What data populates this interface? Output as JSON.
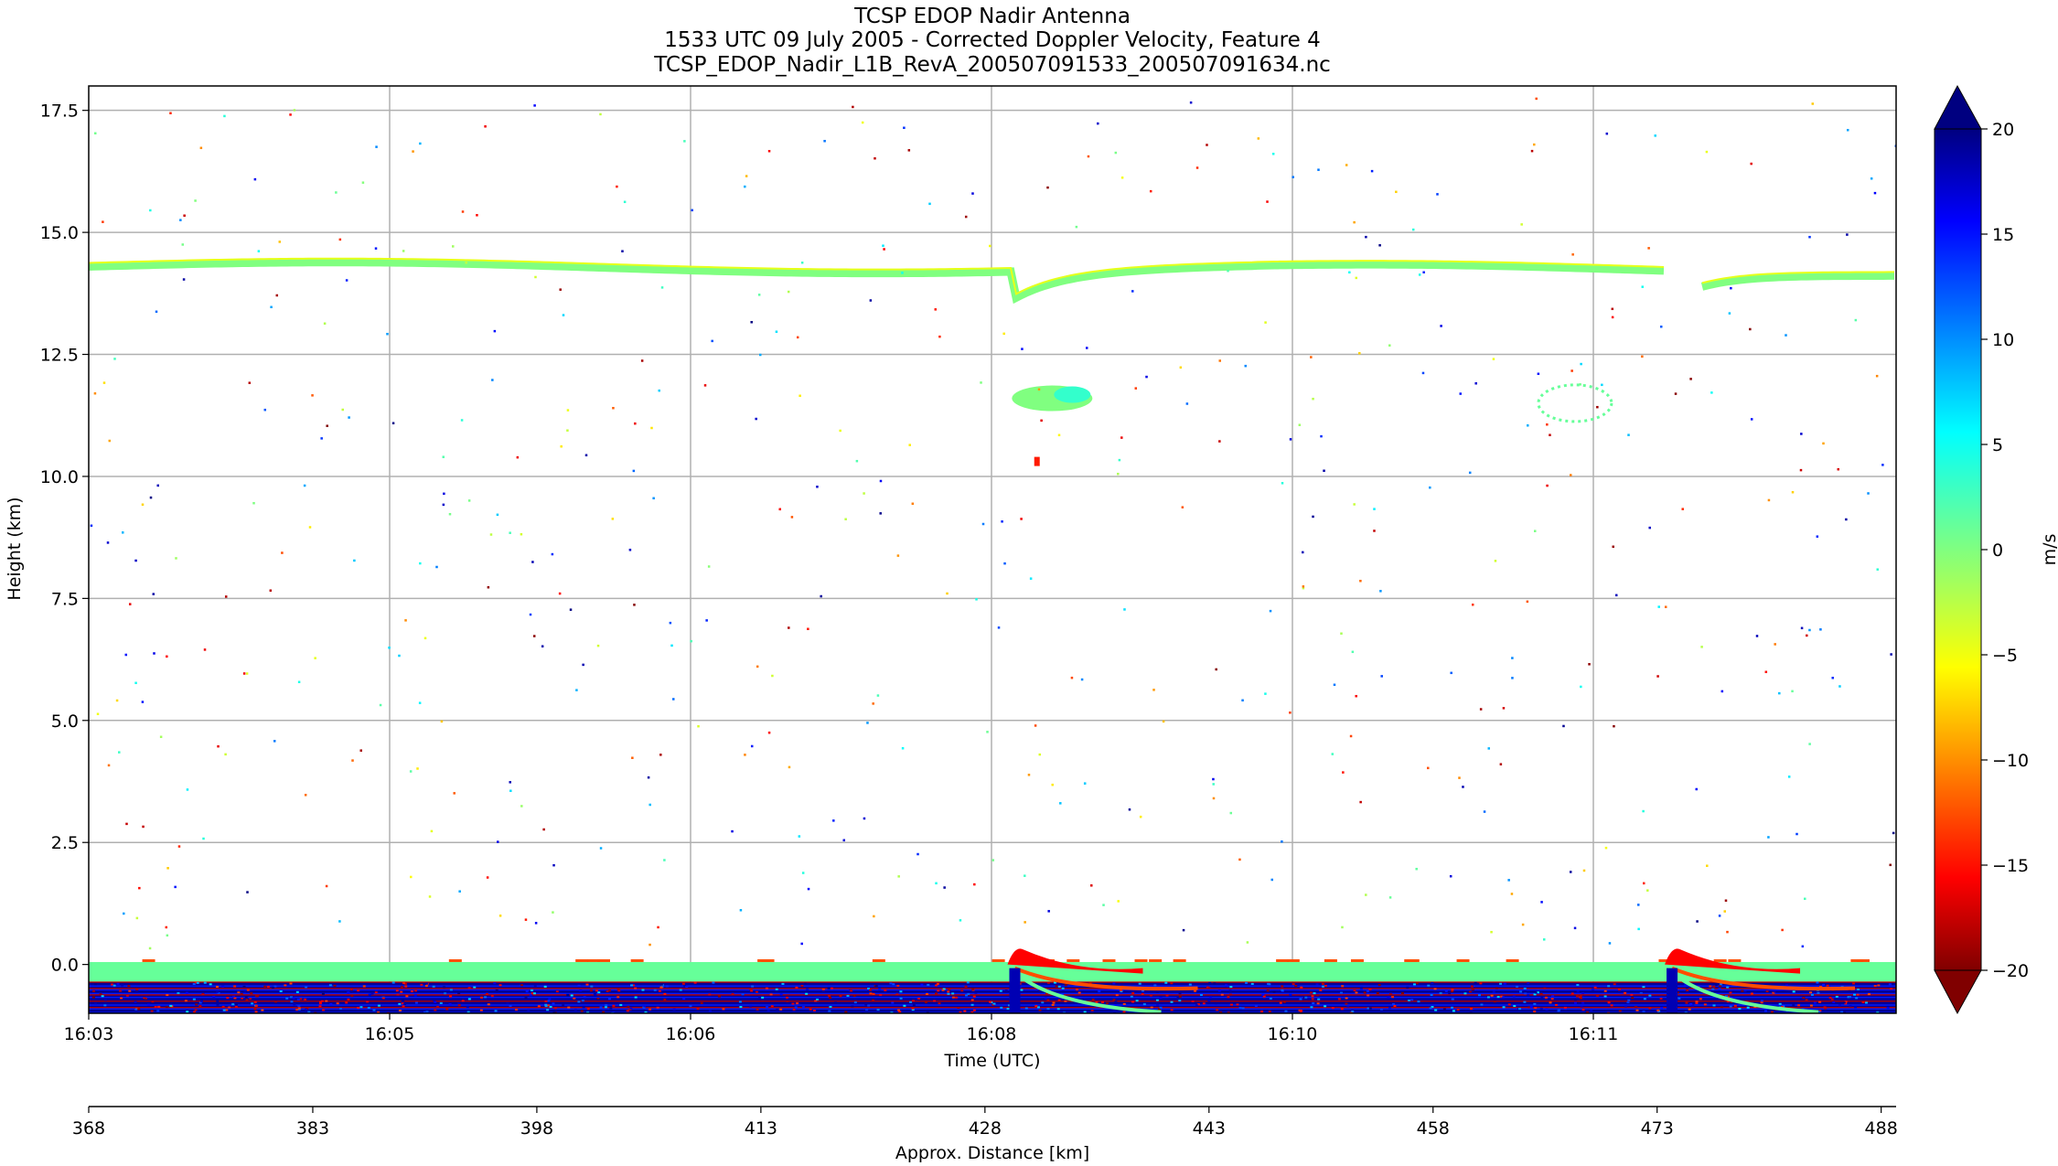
{
  "chart_data": {
    "type": "heatmap",
    "title_lines": [
      "TCSP EDOP Nadir Antenna",
      "1533 UTC 09 July 2005 - Corrected Doppler Velocity, Feature 4",
      "TCSP_EDOP_Nadir_L1B_RevA_200507091533_200507091634.nc"
    ],
    "xlabel": "Time (UTC)",
    "ylabel": "Height (km)",
    "x2label": "Approx. Distance [km]",
    "colorbar_label": "m/s",
    "x_ticks": [
      "16:03",
      "16:05",
      "16:06",
      "16:08",
      "16:10",
      "16:11"
    ],
    "y_ticks": [
      0.0,
      2.5,
      5.0,
      7.5,
      10.0,
      12.5,
      15.0,
      17.5
    ],
    "y_tick_labels": [
      "0.0",
      "2.5",
      "5.0",
      "7.5",
      "10.0",
      "12.5",
      "15.0",
      "17.5"
    ],
    "x2_ticks": [
      "368",
      "383",
      "398",
      "413",
      "428",
      "443",
      "458",
      "473",
      "488"
    ],
    "colorbar_ticks": [
      20,
      15,
      10,
      5,
      0,
      -5,
      -10,
      -15,
      -20
    ],
    "colorbar_tick_labels": [
      "20",
      "15",
      "10",
      "5",
      "0",
      "−5",
      "−10",
      "−15",
      "−20"
    ],
    "ylim": [
      -1.0,
      18.0
    ],
    "x2lim": [
      368,
      489
    ],
    "clim": [
      -20,
      20
    ],
    "colormap": "jet_r",
    "colorbar_extend": "both",
    "grid": true,
    "features": {
      "tropopause_echo_height_km": 14.3,
      "surface_echo_height_km": 0.0,
      "cloud_patches_km": [
        11.5,
        12.2
      ],
      "dips_at_distance_km": [
        430,
        474
      ]
    },
    "colors": {
      "jet_stops": [
        "#800000",
        "#ff0000",
        "#ff8000",
        "#ffff00",
        "#80ff80",
        "#00ffff",
        "#0080ff",
        "#0000ff",
        "#000080"
      ]
    }
  }
}
